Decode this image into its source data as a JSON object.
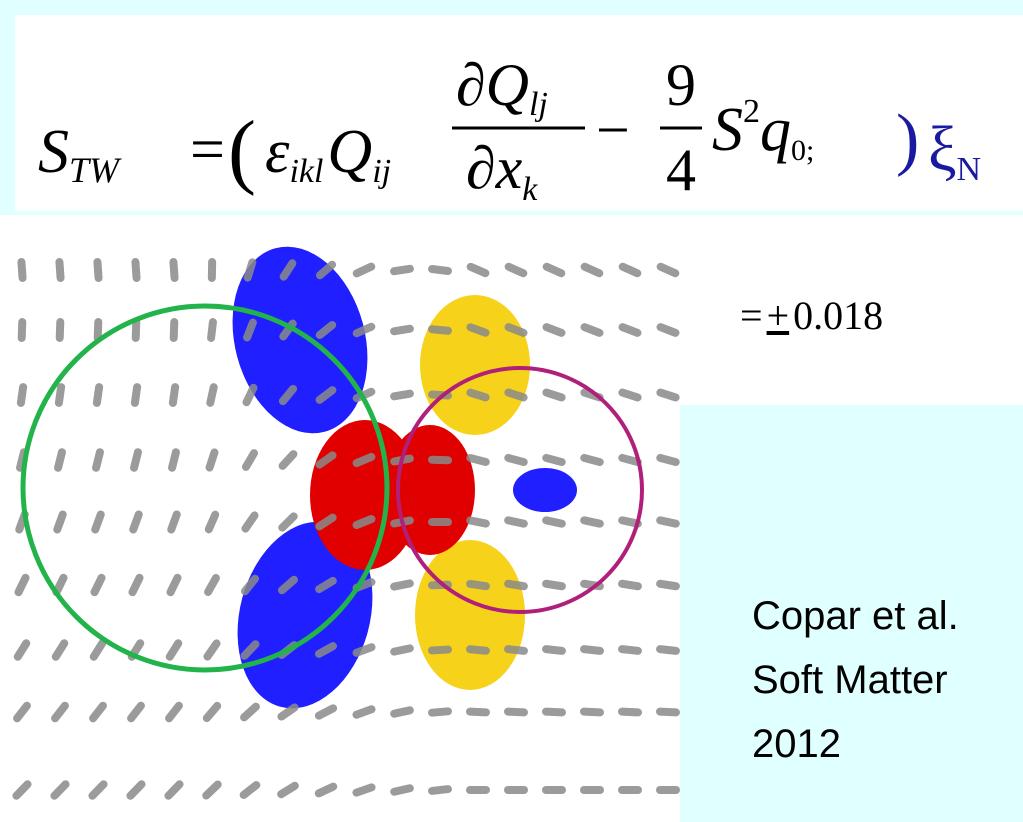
{
  "equation": {
    "lhs": "S",
    "lhs_sub": "TW",
    "equals": "=",
    "open": "(",
    "eps": "ε",
    "eps_sub": "ikl",
    "q": "Q",
    "q_sub": "ij",
    "num": "∂Q",
    "num_sub": "lj",
    "den": "∂x",
    "den_sub": "k",
    "minus": "−",
    "frac_num": "9",
    "frac_den": "4",
    "s": "S",
    "s_sup": "2",
    "q0": "q",
    "q0_sub": "0;",
    "close": ")",
    "xi": "ξ",
    "xi_sub": "N"
  },
  "value": {
    "prefix": "=",
    "sign": "+",
    "number": "0.018"
  },
  "citation": [
    "Copar et al.",
    "Soft Matter",
    "2012"
  ]
}
